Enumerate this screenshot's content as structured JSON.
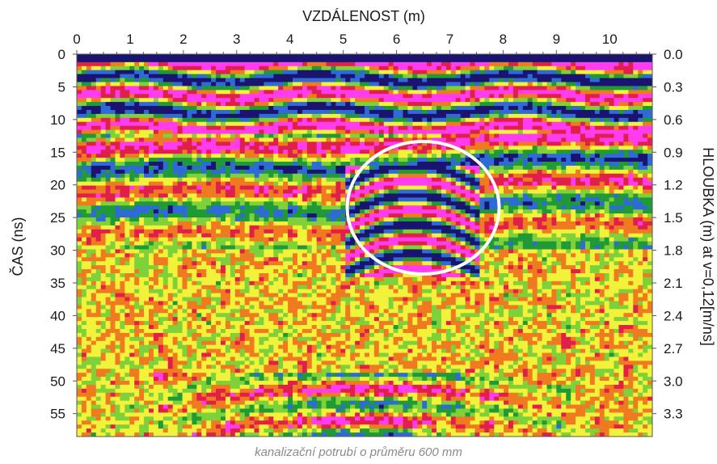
{
  "chart_data": {
    "type": "heatmap",
    "title": "VZDÁLENOST (m)",
    "ylabel_left": "ČAS (ns)",
    "ylabel_right": "HLOUBKA (m) at v=0,12[m/ns]",
    "x_ticks": [
      "0",
      "1",
      "2",
      "3",
      "4",
      "5",
      "6",
      "7",
      "8",
      "9",
      "10"
    ],
    "y_ticks_left": [
      "0",
      "5",
      "10",
      "15",
      "20",
      "25",
      "30",
      "35",
      "40",
      "45",
      "50",
      "55"
    ],
    "y_ticks_right": [
      "0.0",
      "0.3",
      "0.6",
      "0.9",
      "1.2",
      "1.5",
      "1.8",
      "2.1",
      "2.4",
      "2.7",
      "3.0",
      "3.3"
    ],
    "x_range": [
      0,
      10.8
    ],
    "time_range_ns": [
      0,
      58.5
    ],
    "velocity_m_per_ns": 0.12,
    "colormap": [
      "#1a1470",
      "#2f6bd6",
      "#1f9a36",
      "#7fd13a",
      "#f2f23a",
      "#f07a20",
      "#e01f4a",
      "#ff3cf0"
    ],
    "annotation": {
      "type": "circle",
      "center_x_m": 6.5,
      "center_t_ns": 23.5,
      "color": "#ffffff"
    },
    "features": [
      {
        "type": "hyperbola",
        "apex_x_m": 6.3,
        "apex_t_ns": 20.5
      },
      {
        "type": "hyperbola",
        "apex_x_m": 5.3,
        "apex_t_ns": 53
      }
    ]
  },
  "caption": "kanalizační potrubí o průměru 600 mm"
}
